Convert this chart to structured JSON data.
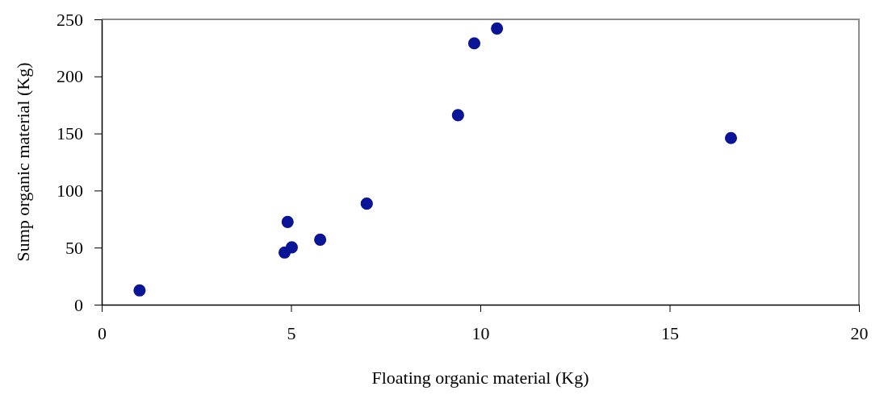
{
  "chart_data": {
    "type": "scatter",
    "xlabel": "Floating organic material (Kg)",
    "ylabel": "Sump organic material (Kg)",
    "x": [
      1.0,
      4.83,
      4.91,
      5.02,
      5.77,
      7.0,
      9.41,
      9.84,
      10.44,
      16.62
    ],
    "series": [
      {
        "color": "#0a1496",
        "values": [
          12.5,
          45.7,
          72.5,
          50.2,
          56.9,
          88.5,
          166,
          229,
          242,
          146
        ]
      }
    ],
    "xlim": [
      0,
      20
    ],
    "xticks": [
      0,
      5,
      10,
      15,
      20
    ],
    "ylim": [
      0,
      250
    ],
    "yticks": [
      0,
      50,
      100,
      150,
      200,
      250
    ],
    "marker": "circle",
    "grid": false
  }
}
